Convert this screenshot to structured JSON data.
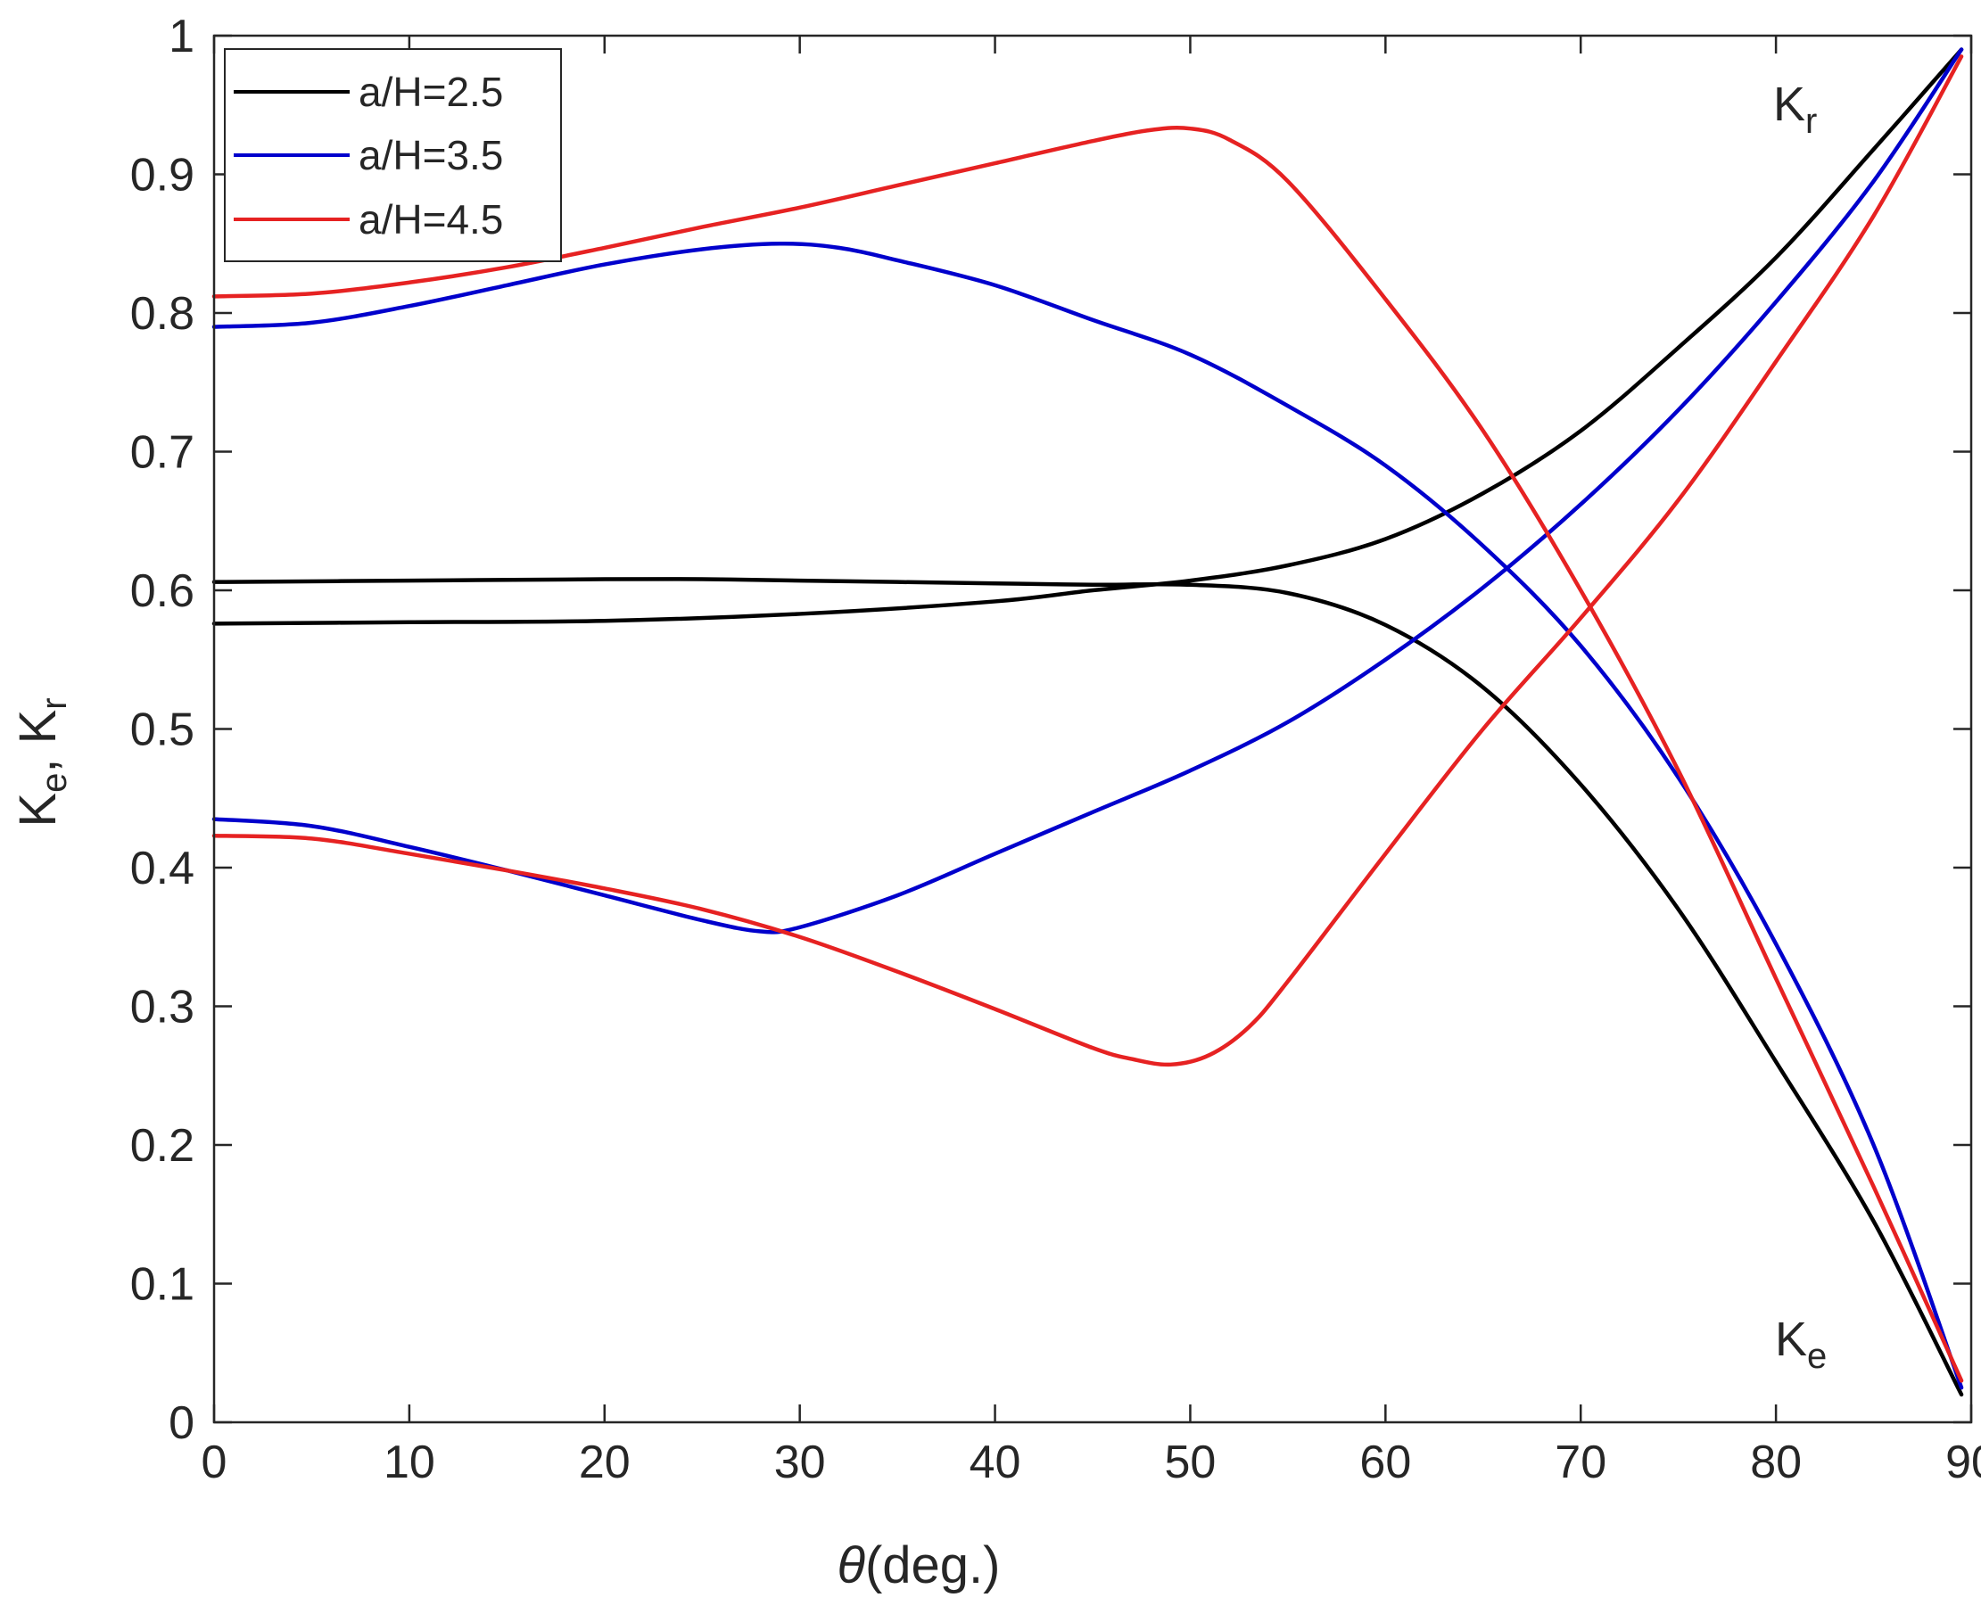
{
  "chart_data": {
    "type": "line",
    "title": "",
    "xlabel": {
      "symbol": "θ",
      "rest": "(deg.)"
    },
    "ylabel": {
      "k1": "K",
      "s1": "e",
      "sep": ", ",
      "k2": "K",
      "s2": "r"
    },
    "xlim": [
      0,
      90
    ],
    "ylim": [
      0,
      1
    ],
    "xticks": [
      0,
      10,
      20,
      30,
      40,
      50,
      60,
      70,
      80,
      90
    ],
    "xtick_labels": [
      "0",
      "10",
      "20",
      "30",
      "40",
      "50",
      "60",
      "70",
      "80",
      "90"
    ],
    "yticks": [
      0,
      0.1,
      0.2,
      0.3,
      0.4,
      0.5,
      0.6,
      0.7,
      0.8,
      0.9,
      1
    ],
    "ytick_labels": [
      "0",
      "0.1",
      "0.2",
      "0.3",
      "0.4",
      "0.5",
      "0.6",
      "0.7",
      "0.8",
      "0.9",
      "1"
    ],
    "grid": false,
    "legend_position": "top-left",
    "legend": [
      {
        "label": "a/H=2.5",
        "color": "#000000"
      },
      {
        "label": "a/H=3.5",
        "color": "#0000cc"
      },
      {
        "label": "a/H=4.5",
        "color": "#e62222"
      }
    ],
    "annotations": [
      {
        "name": "kr-label",
        "main": "K",
        "sub": "r",
        "x": 85.5,
        "y": 0.95
      },
      {
        "name": "ke-label",
        "main": "K",
        "sub": "e",
        "x": 85.0,
        "y": 0.045
      }
    ],
    "series": [
      {
        "name": "a/H=2.5 Kr",
        "color": "#000000",
        "x": [
          0,
          10,
          20,
          30,
          40,
          45,
          50,
          55,
          60,
          65,
          70,
          75,
          80,
          85,
          89.5
        ],
        "y": [
          0.576,
          0.577,
          0.578,
          0.583,
          0.592,
          0.6,
          0.607,
          0.618,
          0.637,
          0.67,
          0.715,
          0.775,
          0.84,
          0.918,
          0.99
        ]
      },
      {
        "name": "a/H=2.5 Ke",
        "color": "#000000",
        "x": [
          0,
          10,
          20,
          25,
          30,
          40,
          45,
          50,
          55,
          60,
          65,
          70,
          75,
          80,
          85,
          89.5
        ],
        "y": [
          0.606,
          0.607,
          0.608,
          0.608,
          0.607,
          0.605,
          0.604,
          0.604,
          0.598,
          0.575,
          0.53,
          0.46,
          0.37,
          0.26,
          0.145,
          0.02
        ]
      },
      {
        "name": "a/H=3.5 Kr",
        "color": "#0000cc",
        "x": [
          0,
          5,
          10,
          15,
          20,
          25,
          28,
          30,
          35,
          40,
          45,
          50,
          55,
          60,
          65,
          70,
          75,
          80,
          85,
          89.5
        ],
        "y": [
          0.435,
          0.43,
          0.415,
          0.398,
          0.38,
          0.362,
          0.354,
          0.357,
          0.38,
          0.41,
          0.44,
          0.47,
          0.505,
          0.55,
          0.602,
          0.662,
          0.73,
          0.808,
          0.895,
          0.99
        ]
      },
      {
        "name": "a/H=3.5 Ke",
        "color": "#0000cc",
        "x": [
          0,
          5,
          10,
          15,
          20,
          25,
          29,
          32,
          35,
          40,
          45,
          50,
          55,
          60,
          65,
          70,
          75,
          80,
          85,
          89.5
        ],
        "y": [
          0.79,
          0.793,
          0.805,
          0.82,
          0.835,
          0.846,
          0.85,
          0.847,
          0.838,
          0.82,
          0.795,
          0.77,
          0.733,
          0.69,
          0.632,
          0.56,
          0.465,
          0.345,
          0.2,
          0.025
        ]
      },
      {
        "name": "a/H=4.5 Kr",
        "color": "#e62222",
        "x": [
          0,
          5,
          10,
          15,
          20,
          25,
          30,
          35,
          40,
          45,
          47,
          49,
          51,
          53,
          55,
          60,
          65,
          70,
          75,
          80,
          85,
          89.5
        ],
        "y": [
          0.423,
          0.421,
          0.41,
          0.398,
          0.385,
          0.37,
          0.35,
          0.325,
          0.298,
          0.27,
          0.262,
          0.258,
          0.265,
          0.285,
          0.318,
          0.41,
          0.5,
          0.58,
          0.665,
          0.765,
          0.87,
          0.985
        ]
      },
      {
        "name": "a/H=4.5 Ke",
        "color": "#e62222",
        "x": [
          0,
          5,
          10,
          15,
          20,
          25,
          30,
          35,
          40,
          45,
          48,
          50,
          52,
          55,
          60,
          65,
          70,
          75,
          80,
          85,
          89.5
        ],
        "y": [
          0.812,
          0.814,
          0.822,
          0.833,
          0.847,
          0.862,
          0.876,
          0.892,
          0.908,
          0.924,
          0.932,
          0.933,
          0.925,
          0.895,
          0.81,
          0.715,
          0.6,
          0.47,
          0.32,
          0.17,
          0.03
        ]
      }
    ]
  }
}
